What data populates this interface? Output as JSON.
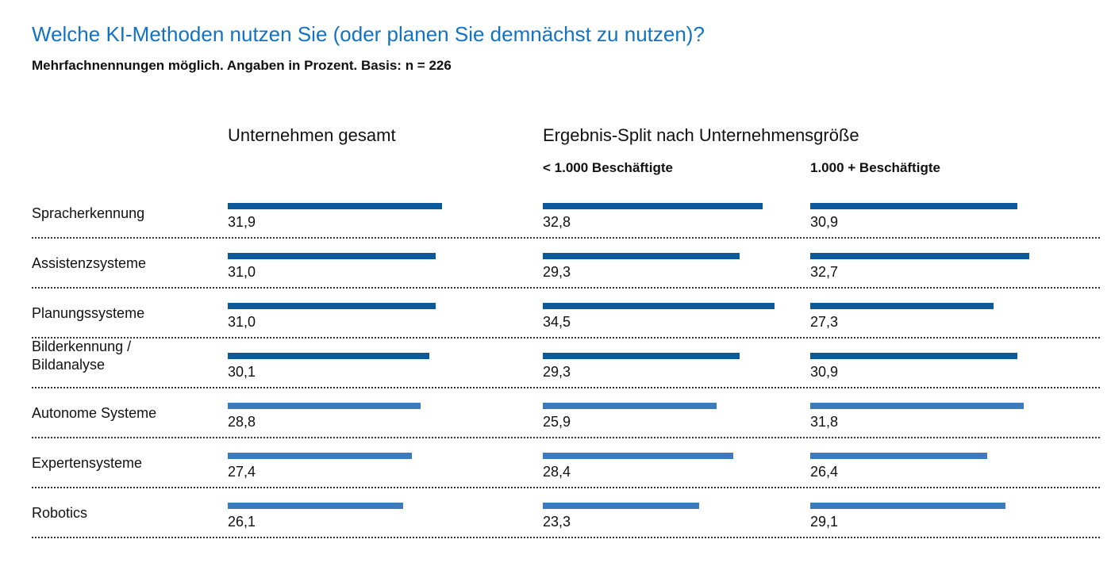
{
  "title": "Welche KI-Methoden nutzen Sie (oder planen Sie demnächst zu nutzen)?",
  "subtitle": "Mehrfachnennungen möglich. Angaben in Prozent. Basis: n = 226",
  "columns": {
    "total": "Unternehmen gesamt",
    "split": "Ergebnis-Split nach Unternehmensgröße",
    "small": "< 1.000 Beschäftigte",
    "large": "1.000 + Beschäftigte"
  },
  "colors": {
    "title": "#1273c2",
    "bar_dark": "#0a5a9c",
    "bar_light": "#3d7bbf"
  },
  "chart_data": {
    "type": "bar",
    "orientation": "horizontal",
    "categories": [
      "Spracherkennung",
      "Assistenzsysteme",
      "Planungssysteme",
      "Bilderkennung /\nBildanalyse",
      "Autonome Systeme",
      "Expertensysteme",
      "Robotics"
    ],
    "series": [
      {
        "name": "Unternehmen gesamt",
        "values": [
          31.9,
          31.0,
          31.0,
          30.1,
          28.8,
          27.4,
          26.1
        ],
        "labels": [
          "31,9",
          "31,0",
          "31,0",
          "30,1",
          "28,8",
          "27,4",
          "26,1"
        ]
      },
      {
        "name": "< 1.000 Beschäftigte",
        "values": [
          32.8,
          29.3,
          34.5,
          29.3,
          25.9,
          28.4,
          23.3
        ],
        "labels": [
          "32,8",
          "29,3",
          "34,5",
          "29,3",
          "25,9",
          "28,4",
          "23,3"
        ]
      },
      {
        "name": "1.000 + Beschäftigte",
        "values": [
          30.9,
          32.7,
          27.3,
          30.9,
          31.8,
          26.4,
          29.1
        ],
        "labels": [
          "30,9",
          "32,7",
          "27,3",
          "30,9",
          "31,8",
          "26,4",
          "29,1"
        ]
      }
    ],
    "unit": "%",
    "grid": false
  }
}
